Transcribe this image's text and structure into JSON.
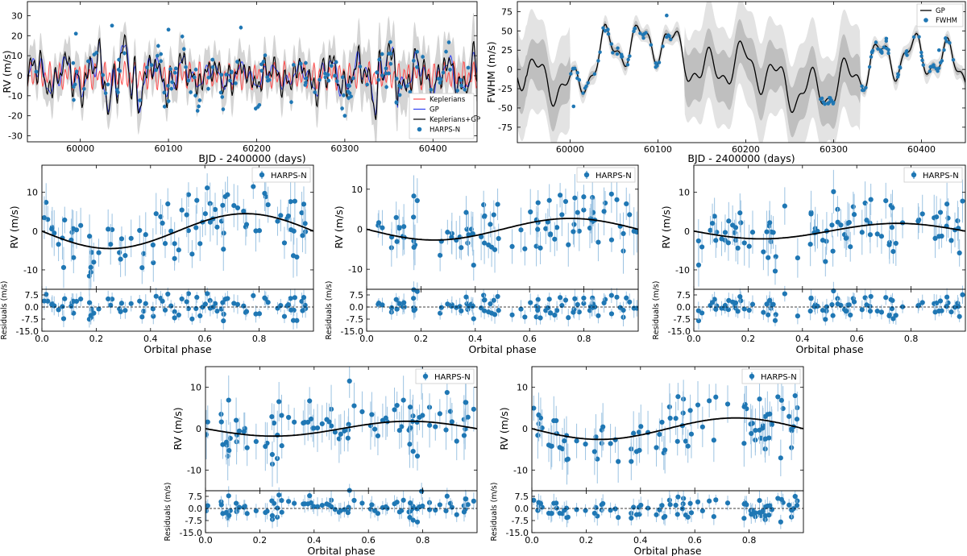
{
  "figure": {
    "panel_top_left": {
      "ylabel": "RV (m/s)",
      "xlabel": "BJD - 2400000 (days)",
      "xlim": [
        59940,
        60450
      ],
      "ylim": [
        -33,
        37
      ],
      "xticks": [
        60000,
        60100,
        60200,
        60300,
        60400
      ],
      "yticks": [
        -30,
        -20,
        -10,
        0,
        10,
        20,
        30
      ],
      "legend": [
        "Keplerians",
        "GP",
        "Keplerians+GP",
        "HARPS-N"
      ],
      "legend_placement": "bottom-right",
      "colors": {
        "keplerians": "#ff4f4f",
        "gp": "#2f3ff0",
        "kep_gp": "#000000",
        "points": "#1f77b4"
      }
    },
    "panel_top_right": {
      "ylabel": "FWHM (m/s)",
      "xlabel": "BJD - 2400000 (days)",
      "xlim": [
        59940,
        60450
      ],
      "ylim": [
        -95,
        88
      ],
      "xticks": [
        60000,
        60100,
        60200,
        60300,
        60400
      ],
      "yticks": [
        -75,
        -50,
        -25,
        0,
        25,
        50,
        75
      ],
      "legend": [
        "GP",
        "FWHM"
      ],
      "legend_placement": "top-right"
    },
    "phase_panels": {
      "xlabel": "Orbital phase",
      "ylabel": "RV (m/s)",
      "resid_label": "Residuals (m/s)",
      "legend": "HARPS-N",
      "xticks": [
        "0.0",
        "0.2",
        "0.4",
        "0.6",
        "0.8"
      ],
      "yticks": [
        "-10",
        "0",
        "10"
      ],
      "resid_yticks": [
        "7.5",
        "0.0",
        "-7.5",
        "-15.0"
      ]
    }
  },
  "chart_data": [
    {
      "type": "line",
      "title": "",
      "xlabel": "BJD - 2400000 (days)",
      "ylabel": "RV (m/s)",
      "xlim": [
        59940,
        60450
      ],
      "ylim": [
        -33,
        37
      ],
      "series": [
        {
          "name": "Keplerians",
          "x": [
            59950,
            60050,
            60150,
            60250,
            60350,
            60450
          ],
          "y": [
            0,
            4,
            -3,
            5,
            -4,
            2
          ]
        },
        {
          "name": "GP",
          "x": [
            59950,
            60000,
            60036,
            60100,
            60150,
            60250,
            60350,
            60450
          ],
          "y": [
            0,
            -15,
            23,
            22,
            -5,
            5,
            -10,
            0
          ]
        },
        {
          "name": "Keplerians+GP",
          "x": [
            59950,
            60000,
            60036,
            60100,
            60150,
            60250,
            60350,
            60450
          ],
          "y": [
            0,
            -18,
            24,
            22,
            -8,
            8,
            -14,
            0
          ]
        },
        {
          "name": "HARPS-N",
          "x": [
            59950,
            59995,
            60036,
            60100,
            60150,
            60250,
            60300,
            60350,
            60440
          ],
          "y": [
            2,
            21,
            25,
            23,
            8,
            6,
            -20,
            11,
            4
          ]
        }
      ]
    },
    {
      "type": "line",
      "title": "",
      "xlabel": "BJD - 2400000 (days)",
      "ylabel": "FWHM (m/s)",
      "xlim": [
        59940,
        60450
      ],
      "ylim": [
        -95,
        88
      ],
      "series": [
        {
          "name": "GP",
          "x": [
            59950,
            60004,
            60040,
            60080,
            60108,
            60150,
            60200,
            60258,
            60300,
            60350,
            60400,
            60450
          ],
          "y": [
            -5,
            -50,
            50,
            62,
            70,
            -10,
            20,
            -55,
            -45,
            25,
            35,
            5
          ]
        },
        {
          "name": "FWHM",
          "x": [
            60004,
            60040,
            60110,
            60290,
            60360,
            60420
          ],
          "y": [
            -48,
            50,
            70,
            -45,
            40,
            25
          ]
        }
      ]
    },
    {
      "type": "scatter",
      "title": "",
      "xlabel": "Orbital phase",
      "ylabel": "RV (m/s)",
      "xlim": [
        0,
        1
      ],
      "ylim": [
        -15,
        17
      ],
      "legend": [
        "HARPS-N"
      ],
      "model_amplitude": 4.5,
      "model_peak_phase": 0.75,
      "resid_ylim": [
        -15,
        11
      ]
    },
    {
      "type": "scatter",
      "title": "",
      "xlabel": "Orbital phase",
      "ylabel": "RV (m/s)",
      "xlim": [
        0,
        1
      ],
      "ylim": [
        -15,
        16
      ],
      "legend": [
        "HARPS-N"
      ],
      "model_amplitude": 2.7,
      "model_peak_phase": 0.75,
      "resid_ylim": [
        -15,
        11
      ]
    },
    {
      "type": "scatter",
      "title": "",
      "xlabel": "Orbital phase",
      "ylabel": "RV (m/s)",
      "xlim": [
        0,
        1
      ],
      "ylim": [
        -15,
        17
      ],
      "legend": [
        "HARPS-N"
      ],
      "model_amplitude": 2.0,
      "model_peak_phase": 0.75,
      "resid_ylim": [
        -15,
        11
      ]
    },
    {
      "type": "scatter",
      "title": "",
      "xlabel": "Orbital phase",
      "ylabel": "RV (m/s)",
      "xlim": [
        0,
        1
      ],
      "ylim": [
        -15,
        15
      ],
      "legend": [
        "HARPS-N"
      ],
      "model_amplitude": 1.8,
      "model_peak_phase": 0.75,
      "resid_ylim": [
        -15,
        11
      ]
    },
    {
      "type": "scatter",
      "title": "",
      "xlabel": "Orbital phase",
      "ylabel": "RV (m/s)",
      "xlim": [
        0,
        1
      ],
      "ylim": [
        -15,
        15
      ],
      "legend": [
        "HARPS-N"
      ],
      "model_amplitude": 2.6,
      "model_peak_phase": 0.75,
      "resid_ylim": [
        -15,
        11
      ]
    }
  ]
}
